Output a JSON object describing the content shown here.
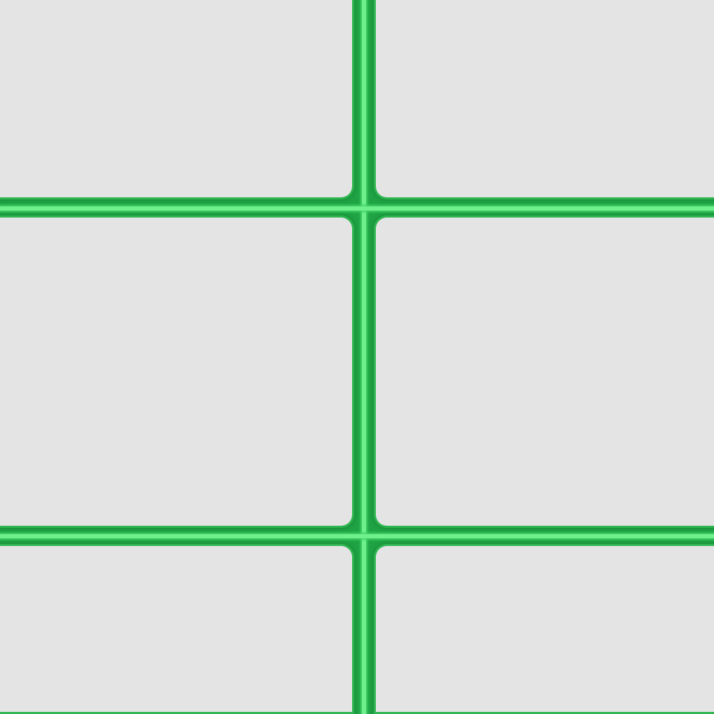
{
  "grid": {
    "rows": 3,
    "columns": 2,
    "tile_color": "#e4e4e4",
    "line_color": "#2fb54f",
    "line_highlight_color": "#6ff08c",
    "tiles": [
      {
        "id": "tile-1",
        "label": ""
      },
      {
        "id": "tile-2",
        "label": ""
      },
      {
        "id": "tile-3",
        "label": ""
      },
      {
        "id": "tile-4",
        "label": ""
      },
      {
        "id": "tile-5",
        "label": ""
      },
      {
        "id": "tile-6",
        "label": ""
      }
    ]
  }
}
